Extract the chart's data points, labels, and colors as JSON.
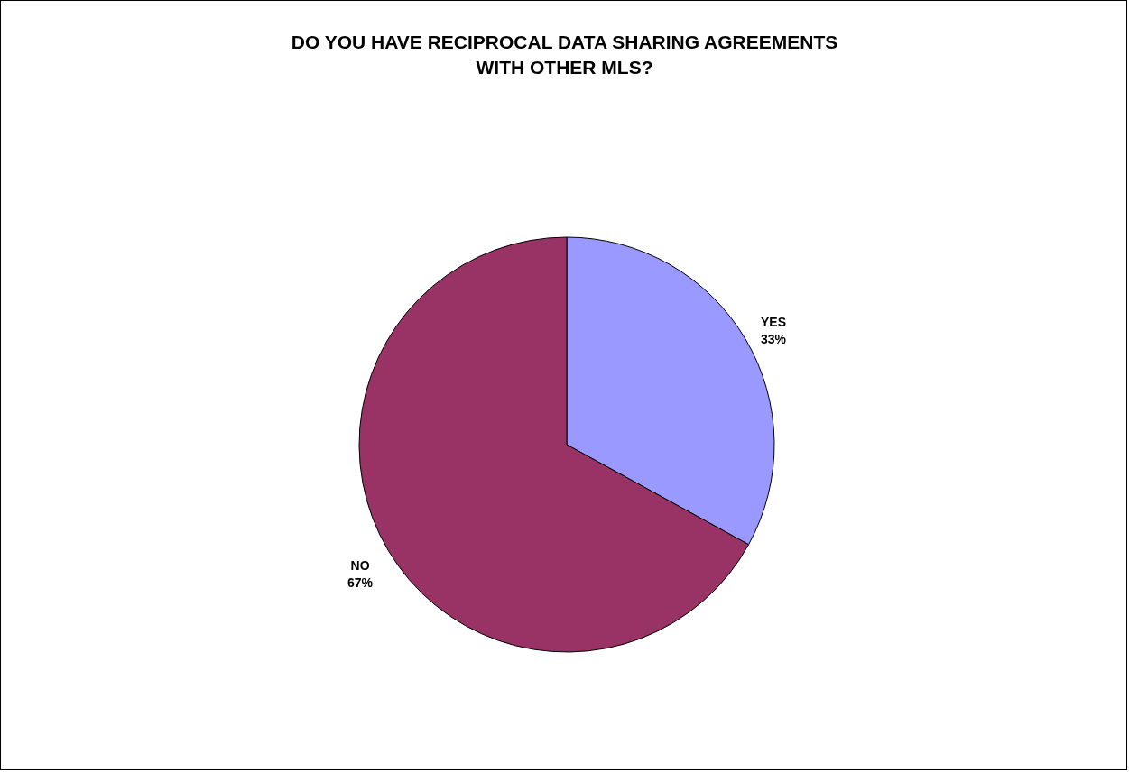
{
  "chart_data": {
    "type": "pie",
    "title": "DO YOU HAVE  RECIPROCAL DATA SHARING AGREEMENTS WITH OTHER MLS?",
    "categories": [
      "YES",
      "NO"
    ],
    "values": [
      33,
      67
    ],
    "colors": [
      "#9999ff",
      "#993366"
    ],
    "value_labels": [
      "33%",
      "67%"
    ]
  }
}
